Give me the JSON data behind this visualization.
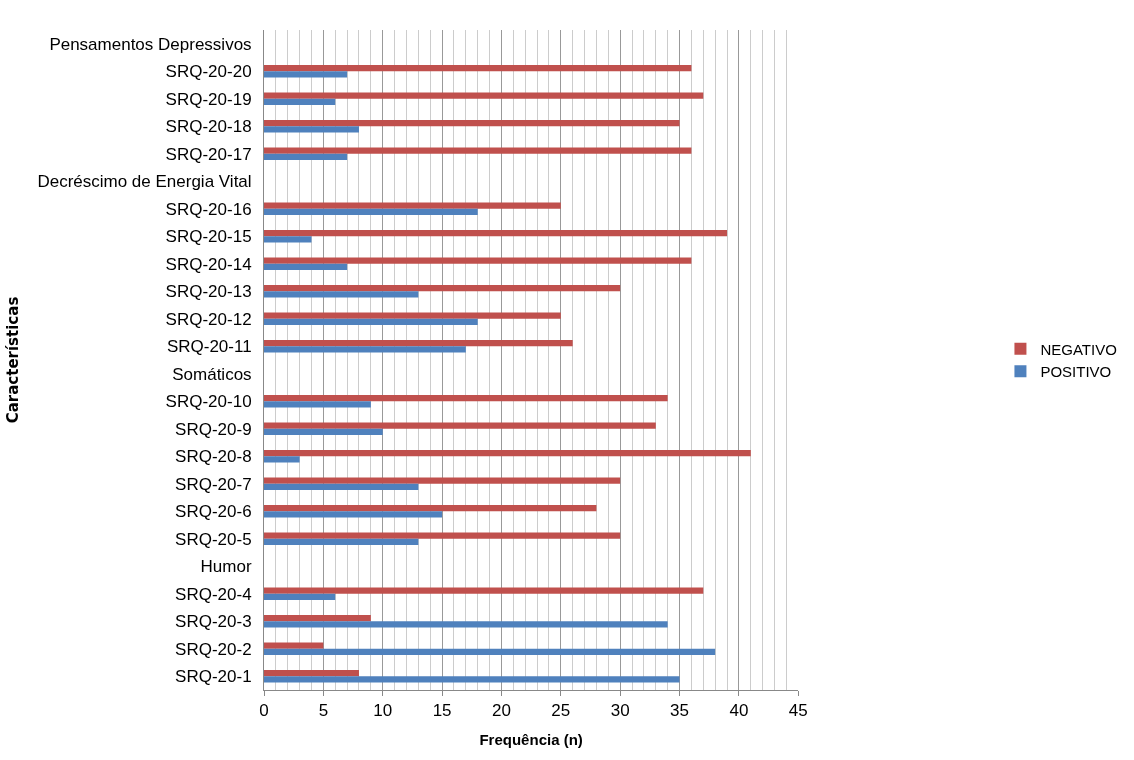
{
  "chart_data": {
    "type": "bar",
    "orientation": "horizontal",
    "xlabel": "Frequência (n)",
    "ylabel": "Características",
    "categories": [
      "Pensamentos Depressivos",
      "SRQ-20-20",
      "SRQ-20-19",
      "SRQ-20-18",
      "SRQ-20-17",
      "Decréscimo de Energia Vital",
      "SRQ-20-16",
      "SRQ-20-15",
      "SRQ-20-14",
      "SRQ-20-13",
      "SRQ-20-12",
      "SRQ-20-11",
      "Somáticos",
      "SRQ-20-10",
      "SRQ-20-9",
      "SRQ-20-8",
      "SRQ-20-7",
      "SRQ-20-6",
      "SRQ-20-5",
      "Humor",
      "SRQ-20-4",
      "SRQ-20-3",
      "SRQ-20-2",
      "SRQ-20-1"
    ],
    "series": [
      {
        "name": "NEGATIVO",
        "color": "#c0504d",
        "values": [
          null,
          36,
          37,
          35,
          36,
          null,
          25,
          39,
          36,
          30,
          25,
          26,
          null,
          34,
          33,
          41,
          30,
          28,
          30,
          null,
          37,
          9,
          5,
          8
        ]
      },
      {
        "name": "POSITIVO",
        "color": "#4f81bd",
        "values": [
          null,
          7,
          6,
          8,
          7,
          null,
          18,
          4,
          7,
          13,
          18,
          17,
          null,
          9,
          10,
          3,
          13,
          15,
          13,
          null,
          6,
          34,
          38,
          35
        ]
      }
    ],
    "xlim": [
      0,
      45
    ],
    "xticks": [
      0,
      5,
      10,
      15,
      20,
      25,
      30,
      35,
      40,
      45
    ],
    "grid": "x",
    "legend": "right"
  }
}
